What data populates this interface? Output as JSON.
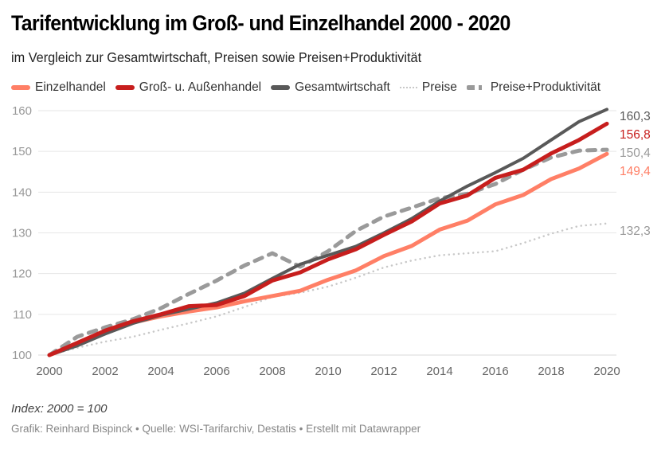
{
  "header": {
    "title": "Tarifentwicklung im Groß- und Einzelhandel 2000 - 2020",
    "subtitle": "im Vergleich zur Gesamtwirtschaft, Preisen sowie Preisen+Produktivität"
  },
  "legend": [
    {
      "label": "Einzelhandel",
      "color": "#ff7f66",
      "style": "solid"
    },
    {
      "label": "Groß- u. Außenhandel",
      "color": "#c71e1d",
      "style": "solid"
    },
    {
      "label": "Gesamtwirtschaft",
      "color": "#595959",
      "style": "solid"
    },
    {
      "label": "Preise",
      "color": "#c8c8c8",
      "style": "dotted"
    },
    {
      "label": "Preise+Produktivität",
      "color": "#9a9a9a",
      "style": "dashed"
    }
  ],
  "footer": {
    "note": "Index: 2000 = 100",
    "source": "Grafik: Reinhard Bispinck • Quelle: WSI-Tarifarchiv, Destatis • Erstellt mit Datawrapper"
  },
  "chart_data": {
    "type": "line",
    "title": "Tarifentwicklung im Groß- und Einzelhandel 2000 - 2020",
    "subtitle": "im Vergleich zur Gesamtwirtschaft, Preisen sowie Preisen+Produktivität",
    "xlabel": "",
    "ylabel": "",
    "x": [
      2000,
      2001,
      2002,
      2003,
      2004,
      2005,
      2006,
      2007,
      2008,
      2009,
      2010,
      2011,
      2012,
      2013,
      2014,
      2015,
      2016,
      2017,
      2018,
      2019,
      2020
    ],
    "xticks": [
      "2000",
      "2002",
      "2004",
      "2006",
      "2008",
      "2010",
      "2012",
      "2014",
      "2016",
      "2018",
      "2020"
    ],
    "yticks": [
      "100",
      "110",
      "120",
      "130",
      "140",
      "150",
      "160"
    ],
    "ylim": [
      100,
      160
    ],
    "xlim": [
      2000,
      2020
    ],
    "grid": "horizontal",
    "legend_position": "top-left",
    "series": [
      {
        "name": "Preise",
        "color": "#c8c8c8",
        "style": "dotted",
        "end_label": "132,3",
        "values": [
          100,
          101.8,
          103.3,
          104.5,
          106.2,
          107.8,
          109.5,
          111.8,
          114.3,
          115.3,
          116.8,
          119,
          121.5,
          123.2,
          124.5,
          125,
          125.5,
          127.5,
          129.8,
          131.7,
          132.3
        ]
      },
      {
        "name": "Preise+Produktivität",
        "color": "#9a9a9a",
        "style": "dashed",
        "end_label": "150,4",
        "values": [
          100,
          104.5,
          106.8,
          108.8,
          111.5,
          115,
          118.3,
          122,
          125,
          121.7,
          125.5,
          130.5,
          134,
          136.2,
          138.5,
          139.6,
          142,
          145.5,
          148.5,
          150.2,
          150.4
        ]
      },
      {
        "name": "Einzelhandel",
        "color": "#ff7f66",
        "style": "solid",
        "end_label": "149,4",
        "values": [
          100,
          102.5,
          105.5,
          108,
          109.5,
          110.7,
          111.7,
          113.2,
          114.5,
          115.8,
          118.5,
          120.8,
          124.3,
          126.8,
          130.8,
          133,
          137,
          139.3,
          143.2,
          145.8,
          149.4
        ]
      },
      {
        "name": "Gesamtwirtschaft",
        "color": "#595959",
        "style": "solid",
        "end_label": "160,3",
        "values": [
          100,
          102.3,
          105.2,
          107.8,
          109.8,
          111.3,
          112.8,
          115.2,
          118.8,
          122.3,
          124.5,
          126.7,
          130,
          133.5,
          137.8,
          141.5,
          144.8,
          148.3,
          152.8,
          157.3,
          160.3
        ]
      },
      {
        "name": "Groß- u. Außenhandel",
        "color": "#c71e1d",
        "style": "solid",
        "end_label": "156,8",
        "values": [
          100,
          103,
          106,
          108.3,
          110,
          112,
          112.3,
          114.5,
          118.3,
          120.3,
          123.5,
          126,
          129.5,
          132.8,
          137.2,
          139.2,
          143.5,
          145.5,
          149.5,
          152.8,
          156.8
        ]
      }
    ]
  }
}
